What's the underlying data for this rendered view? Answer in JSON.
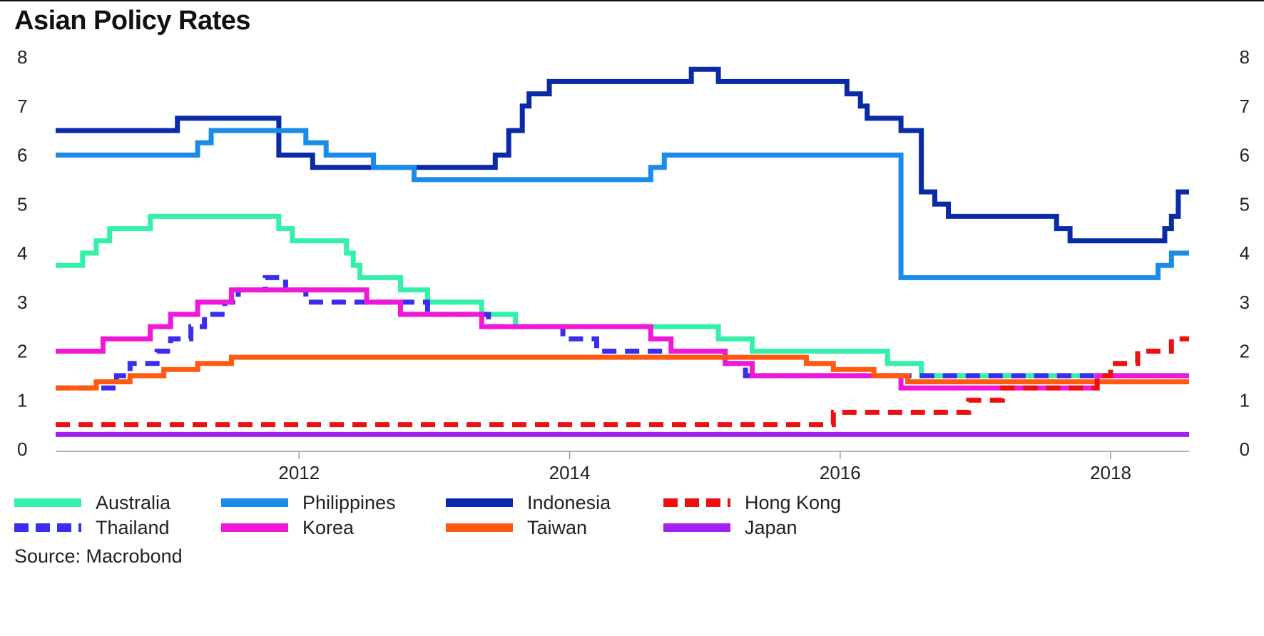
{
  "chart_data": {
    "type": "line",
    "title": "Asian Policy Rates",
    "source": "Source: Macrobond",
    "xlim": [
      2010.2,
      2018.58
    ],
    "ylim": [
      0,
      8
    ],
    "y_ticks": [
      0,
      1,
      2,
      3,
      4,
      5,
      6,
      7,
      8
    ],
    "x_ticks": [
      2012,
      2014,
      2016,
      2018
    ],
    "series": [
      {
        "name": "Indonesia",
        "color": "#0a2aa8",
        "style": "solid",
        "steps": [
          [
            2010.2,
            6.5
          ],
          [
            2011.1,
            6.75
          ],
          [
            2011.85,
            6.0
          ],
          [
            2012.1,
            5.75
          ],
          [
            2013.45,
            6.0
          ],
          [
            2013.55,
            6.5
          ],
          [
            2013.65,
            7.0
          ],
          [
            2013.7,
            7.25
          ],
          [
            2013.85,
            7.5
          ],
          [
            2014.9,
            7.75
          ],
          [
            2015.1,
            7.5
          ],
          [
            2016.05,
            7.25
          ],
          [
            2016.15,
            7.0
          ],
          [
            2016.2,
            6.75
          ],
          [
            2016.45,
            6.5
          ],
          [
            2016.6,
            5.25
          ],
          [
            2016.7,
            5.0
          ],
          [
            2016.8,
            4.75
          ],
          [
            2017.6,
            4.5
          ],
          [
            2017.7,
            4.25
          ],
          [
            2018.4,
            4.5
          ],
          [
            2018.45,
            4.75
          ],
          [
            2018.5,
            5.25
          ],
          [
            2018.58,
            5.25
          ]
        ]
      },
      {
        "name": "Philippines",
        "color": "#1a8be8",
        "style": "solid",
        "steps": [
          [
            2010.2,
            6.0
          ],
          [
            2011.25,
            6.25
          ],
          [
            2011.35,
            6.5
          ],
          [
            2012.05,
            6.25
          ],
          [
            2012.2,
            6.0
          ],
          [
            2012.55,
            5.75
          ],
          [
            2012.85,
            5.5
          ],
          [
            2014.6,
            5.75
          ],
          [
            2014.7,
            6.0
          ],
          [
            2016.45,
            3.5
          ],
          [
            2018.35,
            3.75
          ],
          [
            2018.45,
            4.0
          ],
          [
            2018.58,
            4.0
          ]
        ]
      },
      {
        "name": "Australia",
        "color": "#35f0a8",
        "style": "solid",
        "steps": [
          [
            2010.2,
            3.75
          ],
          [
            2010.4,
            4.0
          ],
          [
            2010.5,
            4.25
          ],
          [
            2010.6,
            4.5
          ],
          [
            2010.9,
            4.75
          ],
          [
            2011.85,
            4.5
          ],
          [
            2011.95,
            4.25
          ],
          [
            2012.35,
            4.0
          ],
          [
            2012.4,
            3.75
          ],
          [
            2012.45,
            3.5
          ],
          [
            2012.75,
            3.25
          ],
          [
            2012.95,
            3.0
          ],
          [
            2013.35,
            2.75
          ],
          [
            2013.6,
            2.5
          ],
          [
            2015.1,
            2.25
          ],
          [
            2015.35,
            2.0
          ],
          [
            2016.35,
            1.75
          ],
          [
            2016.6,
            1.5
          ],
          [
            2018.58,
            1.5
          ]
        ]
      },
      {
        "name": "Thailand",
        "color": "#3a2df0",
        "style": "dashed",
        "steps": [
          [
            2010.2,
            1.25
          ],
          [
            2010.65,
            1.5
          ],
          [
            2010.75,
            1.75
          ],
          [
            2010.95,
            2.0
          ],
          [
            2011.05,
            2.25
          ],
          [
            2011.2,
            2.5
          ],
          [
            2011.3,
            2.75
          ],
          [
            2011.45,
            3.0
          ],
          [
            2011.55,
            3.25
          ],
          [
            2011.75,
            3.5
          ],
          [
            2011.9,
            3.25
          ],
          [
            2012.05,
            3.0
          ],
          [
            2012.95,
            2.75
          ],
          [
            2013.4,
            2.5
          ],
          [
            2013.95,
            2.25
          ],
          [
            2014.2,
            2.0
          ],
          [
            2015.15,
            1.75
          ],
          [
            2015.3,
            1.5
          ],
          [
            2018.58,
            1.5
          ]
        ]
      },
      {
        "name": "Korea",
        "color": "#f018d8",
        "style": "solid",
        "steps": [
          [
            2010.2,
            2.0
          ],
          [
            2010.55,
            2.25
          ],
          [
            2010.9,
            2.5
          ],
          [
            2011.05,
            2.75
          ],
          [
            2011.25,
            3.0
          ],
          [
            2011.5,
            3.25
          ],
          [
            2012.5,
            3.0
          ],
          [
            2012.75,
            2.75
          ],
          [
            2013.35,
            2.5
          ],
          [
            2014.6,
            2.25
          ],
          [
            2014.75,
            2.0
          ],
          [
            2015.15,
            1.75
          ],
          [
            2015.35,
            1.5
          ],
          [
            2016.45,
            1.25
          ],
          [
            2017.9,
            1.5
          ],
          [
            2018.58,
            1.5
          ]
        ]
      },
      {
        "name": "Taiwan",
        "color": "#ff5a10",
        "style": "solid",
        "steps": [
          [
            2010.2,
            1.25
          ],
          [
            2010.5,
            1.375
          ],
          [
            2010.75,
            1.5
          ],
          [
            2011.0,
            1.625
          ],
          [
            2011.25,
            1.75
          ],
          [
            2011.5,
            1.875
          ],
          [
            2015.75,
            1.75
          ],
          [
            2015.95,
            1.625
          ],
          [
            2016.25,
            1.5
          ],
          [
            2016.5,
            1.375
          ],
          [
            2018.58,
            1.375
          ]
        ]
      },
      {
        "name": "Hong Kong",
        "color": "#ee1010",
        "style": "dashed",
        "steps": [
          [
            2010.2,
            0.5
          ],
          [
            2015.95,
            0.75
          ],
          [
            2016.95,
            1.0
          ],
          [
            2017.2,
            1.25
          ],
          [
            2017.9,
            1.5
          ],
          [
            2018.0,
            1.75
          ],
          [
            2018.2,
            2.0
          ],
          [
            2018.45,
            2.25
          ],
          [
            2018.58,
            2.25
          ]
        ]
      },
      {
        "name": "Japan",
        "color": "#a51ff0",
        "style": "solid",
        "steps": [
          [
            2010.2,
            0.3
          ],
          [
            2018.58,
            0.3
          ]
        ]
      }
    ],
    "legend": [
      {
        "name": "Australia",
        "color": "#35f0a8",
        "style": "solid"
      },
      {
        "name": "Philippines",
        "color": "#1a8be8",
        "style": "solid"
      },
      {
        "name": "Indonesia",
        "color": "#0a2aa8",
        "style": "solid"
      },
      {
        "name": "Hong Kong",
        "color": "#ee1010",
        "style": "dashed"
      },
      {
        "name": "Thailand",
        "color": "#3a2df0",
        "style": "dashed"
      },
      {
        "name": "Korea",
        "color": "#f018d8",
        "style": "solid"
      },
      {
        "name": "Taiwan",
        "color": "#ff5a10",
        "style": "solid"
      },
      {
        "name": "Japan",
        "color": "#a51ff0",
        "style": "solid"
      }
    ]
  }
}
